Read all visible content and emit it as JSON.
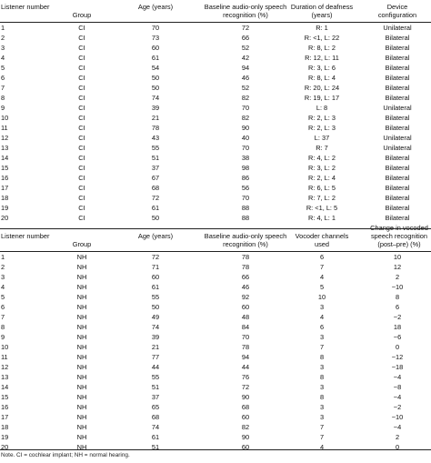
{
  "table1": {
    "headers": [
      "Listener number",
      "Group",
      "Age (years)",
      "Baseline audio-only speech recognition (%)",
      "Duration of deafness (years)",
      "Device configuration"
    ],
    "rows": [
      [
        "1",
        "CI",
        "70",
        "72",
        "R: 1",
        "Unilateral"
      ],
      [
        "2",
        "CI",
        "73",
        "66",
        "R: <1, L: 22",
        "Bilateral"
      ],
      [
        "3",
        "CI",
        "60",
        "52",
        "R: 8, L: 2",
        "Bilateral"
      ],
      [
        "4",
        "CI",
        "61",
        "42",
        "R: 12, L: 11",
        "Bilateral"
      ],
      [
        "5",
        "CI",
        "54",
        "94",
        "R: 3, L: 6",
        "Bilateral"
      ],
      [
        "6",
        "CI",
        "50",
        "46",
        "R: 8, L: 4",
        "Bilateral"
      ],
      [
        "7",
        "CI",
        "50",
        "52",
        "R: 20, L: 24",
        "Bilateral"
      ],
      [
        "8",
        "CI",
        "74",
        "82",
        "R: 19, L: 17",
        "Bilateral"
      ],
      [
        "9",
        "CI",
        "39",
        "70",
        "L: 8",
        "Unilateral"
      ],
      [
        "10",
        "CI",
        "21",
        "82",
        "R: 2, L: 3",
        "Bilateral"
      ],
      [
        "11",
        "CI",
        "78",
        "90",
        "R: 2, L: 3",
        "Bilateral"
      ],
      [
        "12",
        "CI",
        "43",
        "40",
        "L: 37",
        "Unilateral"
      ],
      [
        "13",
        "CI",
        "55",
        "70",
        "R: 7",
        "Unilateral"
      ],
      [
        "14",
        "CI",
        "51",
        "38",
        "R: 4, L: 2",
        "Bilateral"
      ],
      [
        "15",
        "CI",
        "37",
        "98",
        "R: 3, L: 2",
        "Bilateral"
      ],
      [
        "16",
        "CI",
        "67",
        "86",
        "R: 2, L: 4",
        "Bilateral"
      ],
      [
        "17",
        "CI",
        "68",
        "56",
        "R: 6, L: 5",
        "Bilateral"
      ],
      [
        "18",
        "CI",
        "72",
        "70",
        "R: 7, L: 2",
        "Bilateral"
      ],
      [
        "19",
        "CI",
        "61",
        "88",
        "R: <1, L: 5",
        "Bilateral"
      ],
      [
        "20",
        "CI",
        "50",
        "88",
        "R: 4, L: 1",
        "Bilateral"
      ]
    ]
  },
  "table2": {
    "headers": [
      "Listener number",
      "Group",
      "Age (years)",
      "Baseline audio-only speech recognition (%)",
      "Vocoder channels used",
      "Change in vocoded speech recognition (post–pre) (%)"
    ],
    "rows": [
      [
        "1",
        "NH",
        "72",
        "78",
        "6",
        "10"
      ],
      [
        "2",
        "NH",
        "71",
        "78",
        "7",
        "12"
      ],
      [
        "3",
        "NH",
        "60",
        "66",
        "4",
        "2"
      ],
      [
        "4",
        "NH",
        "61",
        "46",
        "5",
        "−10"
      ],
      [
        "5",
        "NH",
        "55",
        "92",
        "10",
        "8"
      ],
      [
        "6",
        "NH",
        "50",
        "60",
        "3",
        "6"
      ],
      [
        "7",
        "NH",
        "49",
        "48",
        "4",
        "−2"
      ],
      [
        "8",
        "NH",
        "74",
        "84",
        "6",
        "18"
      ],
      [
        "9",
        "NH",
        "39",
        "70",
        "3",
        "−6"
      ],
      [
        "10",
        "NH",
        "21",
        "78",
        "7",
        "0"
      ],
      [
        "11",
        "NH",
        "77",
        "94",
        "8",
        "−12"
      ],
      [
        "12",
        "NH",
        "44",
        "44",
        "3",
        "−18"
      ],
      [
        "13",
        "NH",
        "55",
        "76",
        "8",
        "−4"
      ],
      [
        "14",
        "NH",
        "51",
        "72",
        "3",
        "−8"
      ],
      [
        "15",
        "NH",
        "37",
        "90",
        "8",
        "−4"
      ],
      [
        "16",
        "NH",
        "65",
        "68",
        "3",
        "−2"
      ],
      [
        "17",
        "NH",
        "68",
        "60",
        "3",
        "−10"
      ],
      [
        "18",
        "NH",
        "74",
        "82",
        "7",
        "−4"
      ],
      [
        "19",
        "NH",
        "61",
        "90",
        "7",
        "2"
      ],
      [
        "20",
        "NH",
        "51",
        "60",
        "4",
        "0"
      ]
    ]
  },
  "note": "Note. CI = cochlear implant; NH = normal hearing."
}
